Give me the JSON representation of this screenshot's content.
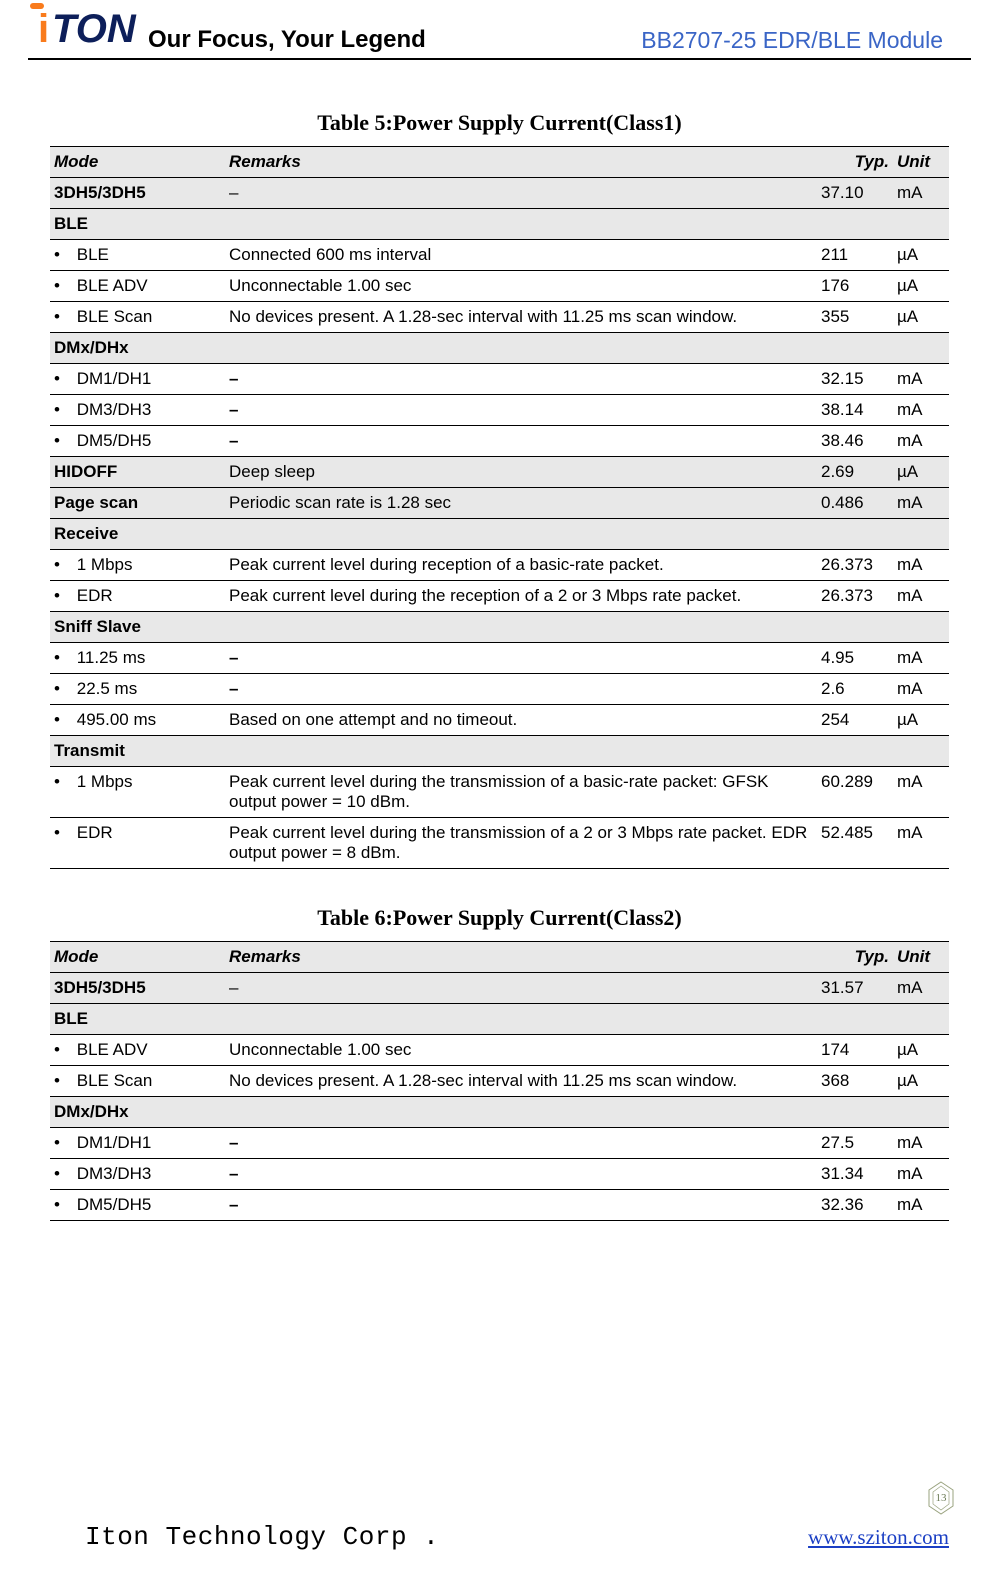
{
  "header": {
    "slogan": "Our Focus, Your Legend",
    "module": "BB2707-25 EDR/BLE Module",
    "logo_colors": {
      "orange": "#f97b1c",
      "navy": "#0d1f5a"
    }
  },
  "table5": {
    "caption": "Table 5:Power Supply Current(Class1)",
    "columns": [
      "Mode",
      "Remarks",
      "Typ.",
      "Unit"
    ],
    "rows": [
      {
        "type": "data",
        "mode": "3DH5/3DH5",
        "bold_mode": true,
        "remarks": "–",
        "typ": "37.10",
        "unit": "mA",
        "shade": true
      },
      {
        "type": "section",
        "mode": "BLE"
      },
      {
        "type": "data",
        "sub": true,
        "mode": "BLE",
        "remarks": "Connected 600 ms interval",
        "typ": "211",
        "unit": "µA"
      },
      {
        "type": "data",
        "sub": true,
        "mode": "BLE ADV",
        "remarks": "Unconnectable 1.00 sec",
        "typ": "176",
        "unit": "µA"
      },
      {
        "type": "data",
        "sub": true,
        "mode": "BLE Scan",
        "remarks": "No devices present. A 1.28-sec interval with 11.25 ms scan window.",
        "typ": "355",
        "unit": "µA"
      },
      {
        "type": "section",
        "mode": "DMx/DHx"
      },
      {
        "type": "data",
        "sub": true,
        "mode": "DM1/DH1",
        "remarks": "–",
        "typ": "32.15",
        "unit": "mA"
      },
      {
        "type": "data",
        "sub": true,
        "mode": "DM3/DH3",
        "remarks": "–",
        "typ": "38.14",
        "unit": "mA"
      },
      {
        "type": "data",
        "sub": true,
        "mode": "DM5/DH5",
        "remarks": "–",
        "typ": "38.46",
        "unit": "mA"
      },
      {
        "type": "data",
        "mode": "HIDOFF",
        "bold_mode": true,
        "remarks": "Deep sleep",
        "typ": "2.69",
        "unit": "µA",
        "shade": true
      },
      {
        "type": "data",
        "mode": "Page scan",
        "bold_mode": true,
        "remarks": "Periodic scan rate is 1.28 sec",
        "typ": "0.486",
        "unit": "mA",
        "shade": true
      },
      {
        "type": "section",
        "mode": "Receive"
      },
      {
        "type": "data",
        "sub": true,
        "mode": "1 Mbps",
        "remarks": "Peak current level during reception of a basic-rate packet.",
        "typ": "26.373",
        "unit": "mA"
      },
      {
        "type": "data",
        "sub": true,
        "mode": "EDR",
        "remarks": "Peak current level during the reception of a 2 or 3 Mbps rate packet.",
        "typ": "26.373",
        "unit": "mA"
      },
      {
        "type": "section",
        "mode": "Sniff Slave"
      },
      {
        "type": "data",
        "sub": true,
        "mode": "11.25 ms",
        "remarks": "–",
        "typ": "4.95",
        "unit": "mA"
      },
      {
        "type": "data",
        "sub": true,
        "mode": "22.5 ms",
        "remarks": "–",
        "typ": "2.6",
        "unit": "mA"
      },
      {
        "type": "data",
        "sub": true,
        "mode": "495.00 ms",
        "remarks": "Based on one attempt and no timeout.",
        "typ": "254",
        "unit": "µA"
      },
      {
        "type": "section",
        "mode": "Transmit"
      },
      {
        "type": "data",
        "sub": true,
        "mode": "1 Mbps",
        "remarks": "Peak current level during the transmission of a basic-rate packet: GFSK output power = 10 dBm.",
        "typ": "60.289",
        "unit": "mA"
      },
      {
        "type": "data",
        "sub": true,
        "mode": "EDR",
        "remarks": "Peak current level during the transmission of a 2 or 3 Mbps rate packet. EDR output power = 8 dBm.",
        "typ": "52.485",
        "unit": "mA"
      }
    ]
  },
  "table6": {
    "caption": "Table 6:Power Supply Current(Class2)",
    "columns": [
      "Mode",
      "Remarks",
      "Typ.",
      "Unit"
    ],
    "rows": [
      {
        "type": "data",
        "mode": "3DH5/3DH5",
        "bold_mode": true,
        "remarks": "–",
        "typ": "31.57",
        "unit": "mA",
        "shade": true
      },
      {
        "type": "section",
        "mode": "BLE"
      },
      {
        "type": "data",
        "sub": true,
        "mode": "BLE ADV",
        "remarks": "Unconnectable 1.00 sec",
        "typ": "174",
        "unit": "µA"
      },
      {
        "type": "data",
        "sub": true,
        "mode": "BLE Scan",
        "remarks": "No devices present. A 1.28-sec interval with 11.25 ms scan window.",
        "typ": "368",
        "unit": "µA"
      },
      {
        "type": "section",
        "mode": "DMx/DHx"
      },
      {
        "type": "data",
        "sub": true,
        "mode": "DM1/DH1",
        "remarks": "–",
        "typ": "27.5",
        "unit": "mA"
      },
      {
        "type": "data",
        "sub": true,
        "mode": "DM3/DH3",
        "remarks": "–",
        "typ": "31.34",
        "unit": "mA"
      },
      {
        "type": "data",
        "sub": true,
        "mode": "DM5/DH5",
        "remarks": "–",
        "typ": "32.36",
        "unit": "mA"
      }
    ]
  },
  "footer": {
    "company": "Iton Technology Corp .",
    "url": "www.sziton.com",
    "page": "13"
  }
}
